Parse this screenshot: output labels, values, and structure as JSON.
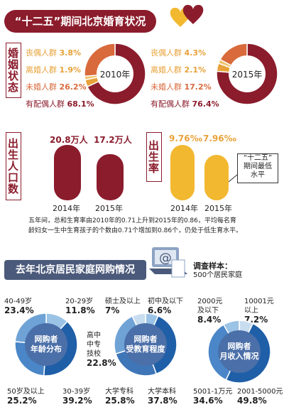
{
  "header": {
    "title": "“十二五”期间北京婚育状况"
  },
  "marriage": {
    "section_label": "婚姻状态",
    "labels": {
      "widowed": "丧偶人群",
      "divorced": "离婚人群",
      "unmarried": "未婚人群",
      "married": "有配偶人群"
    },
    "y2010": {
      "year_label": "2010年",
      "widowed": "3.8%",
      "divorced": "1.9%",
      "unmarried": "26.2%",
      "married": "68.1%"
    },
    "y2015": {
      "year_label": "2015年",
      "widowed": "4.3%",
      "divorced": "2.1%",
      "unmarried": "17.2%",
      "married": "76.4%"
    }
  },
  "births": {
    "section_label": "出生人口数",
    "v2014": "20.8万人",
    "v2015": "17.2万人",
    "y2014": "2014年",
    "y2015": "2015年"
  },
  "birthrate": {
    "section_label": "出生率",
    "v2014": "9.76‰",
    "v2015": "7.96‰",
    "y2014": "2014年",
    "y2015": "2015年",
    "callout_line1": "“十二五”",
    "callout_line2": "期间最低",
    "callout_line3": "水平"
  },
  "paragraph": {
    "line1": "五年间，总和生育率由2010年的0.71上升到2015年的0.86，平均每名育",
    "line2": "龄妇女一生中生育孩子的个数由0.71个增加到0.86个，仍处于低生育水平。"
  },
  "survey": {
    "title": "去年北京居民家庭网购情况",
    "sample_line1": "调查样本：",
    "sample_line2": "500个居民家庭"
  },
  "donut_age": {
    "center_line1": "网购者",
    "center_line2": "年龄分布",
    "labels": {
      "a40_49": "40-49岁",
      "a20_29": "20-29岁",
      "a50": "50岁及以上",
      "a30_39": "30-39岁"
    },
    "values": {
      "a40_49": "23.4%",
      "a20_29": "11.8%",
      "a50": "25.2%",
      "a30_39": "39.2%"
    }
  },
  "donut_edu": {
    "center_line1": "网购者",
    "center_line2": "受教育程度",
    "labels": {
      "master": "硕士及以上",
      "junior": "初中及以下",
      "high_l1": "高中",
      "high_l2": "中专",
      "high_l3": "技校",
      "college": "大学专科",
      "bachelor": "大学本科"
    },
    "values": {
      "master": "7%",
      "junior": "6.6%",
      "high": "22.8%",
      "college": "25.8%",
      "bachelor": "37.8%"
    }
  },
  "donut_income": {
    "center_line1": "网购者",
    "center_line2": "月收入情况",
    "labels": {
      "low_l1": "2000元",
      "low_l2": "及以下",
      "high_l1": "10001元",
      "high_l2": "以上",
      "mid1": "5001-1万元",
      "mid2": "2001-5000元"
    },
    "values": {
      "low": "8.4%",
      "high": "7.2%",
      "mid1": "34.6%",
      "mid2": "49.8%"
    }
  },
  "chart_data": [
    {
      "type": "pie",
      "title": "2010年",
      "categories": [
        "丧偶人群",
        "离婚人群",
        "未婚人群",
        "有配偶人群"
      ],
      "values": [
        3.8,
        1.9,
        26.2,
        68.1
      ]
    },
    {
      "type": "pie",
      "title": "2015年",
      "categories": [
        "丧偶人群",
        "离婚人群",
        "未婚人群",
        "有配偶人群"
      ],
      "values": [
        4.3,
        2.1,
        17.2,
        76.4
      ]
    },
    {
      "type": "bar",
      "ylabel": "出生人口数",
      "categories": [
        "2014年",
        "2015年"
      ],
      "values": [
        20.8,
        17.2
      ]
    },
    {
      "type": "bar",
      "ylabel": "出生率",
      "categories": [
        "2014年",
        "2015年"
      ],
      "values": [
        9.76,
        7.96
      ]
    },
    {
      "type": "pie",
      "title": "网购者年龄分布",
      "categories": [
        "20-29岁",
        "30-39岁",
        "50岁及以上",
        "40-49岁"
      ],
      "values": [
        11.8,
        39.2,
        25.2,
        23.4
      ]
    },
    {
      "type": "pie",
      "title": "网购者受教育程度",
      "categories": [
        "初中及以下",
        "大学本科",
        "大学专科",
        "高中中专技校",
        "硕士及以上"
      ],
      "values": [
        6.6,
        37.8,
        25.8,
        22.8,
        7
      ]
    },
    {
      "type": "pie",
      "title": "网购者月收入情况",
      "categories": [
        "10001元以上",
        "2001-5000元",
        "5001-1万元",
        "2000元及以下"
      ],
      "values": [
        7.2,
        49.8,
        34.6,
        8.4
      ]
    }
  ],
  "colors": {
    "marriage": [
      "#e8a23a",
      "#f0c46a",
      "#d96a3c",
      "#8b1c2c"
    ],
    "births": "#8b1c2c",
    "birthrate": "#f2b830",
    "age": [
      "#9bc3e6",
      "#1f5fa8",
      "#4a86c8",
      "#6fa3d6"
    ],
    "edu": [
      "#9bc3e6",
      "#1f5fa8",
      "#3f76b8",
      "#6fa3d6",
      "#c9ddf0"
    ],
    "income": [
      "#c9ddf0",
      "#1f5fa8",
      "#4a86c8",
      "#9bc3e6"
    ]
  },
  "icons": {
    "hearts": "hearts-icon",
    "laptop": "laptop-at-icon"
  }
}
